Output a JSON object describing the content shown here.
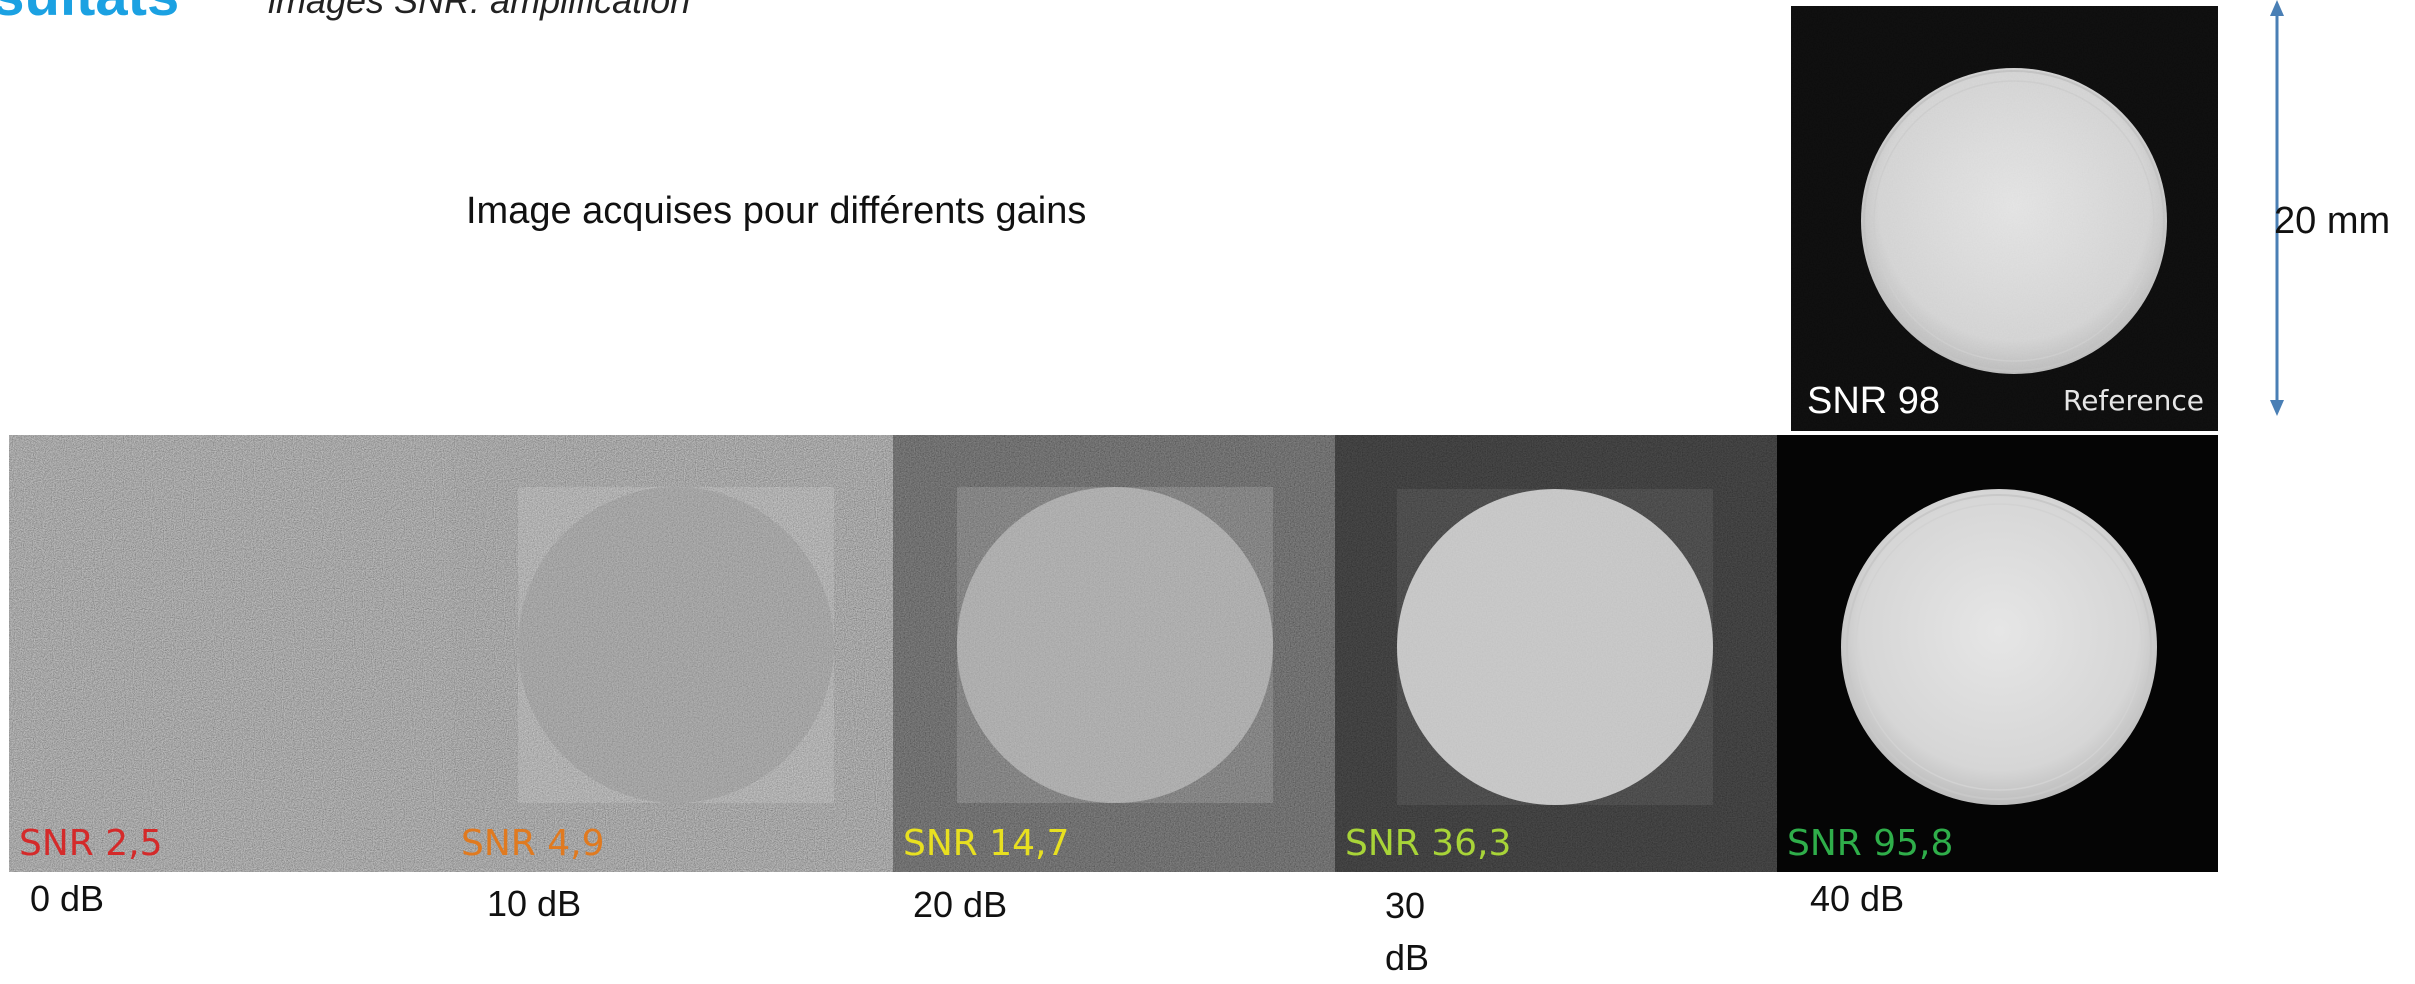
{
  "header": {
    "title": "esultats",
    "subtitle": "images SNR: amplification"
  },
  "caption": "Image acquises pour différents gains",
  "reference": {
    "snr_label": "SNR 98",
    "tag": "Reference"
  },
  "scale": {
    "label": "20 mm"
  },
  "tiles": [
    {
      "snr": "SNR 2,5",
      "gain": "0 dB",
      "snr_color": "#d42a2a"
    },
    {
      "snr": "SNR 4,9",
      "gain": "10 dB",
      "snr_color": "#e07a20"
    },
    {
      "snr": "SNR 14,7",
      "gain": "20 dB",
      "snr_color": "#e8e020"
    },
    {
      "snr": "SNR 36,3",
      "gain": "30\ndB",
      "snr_color": "#a8d438"
    },
    {
      "snr": "SNR 95,8",
      "gain": "40 dB",
      "snr_color": "#2fae4a"
    }
  ],
  "colors": {
    "title": "#1ba1e2",
    "arrow": "#4a7fb5"
  }
}
